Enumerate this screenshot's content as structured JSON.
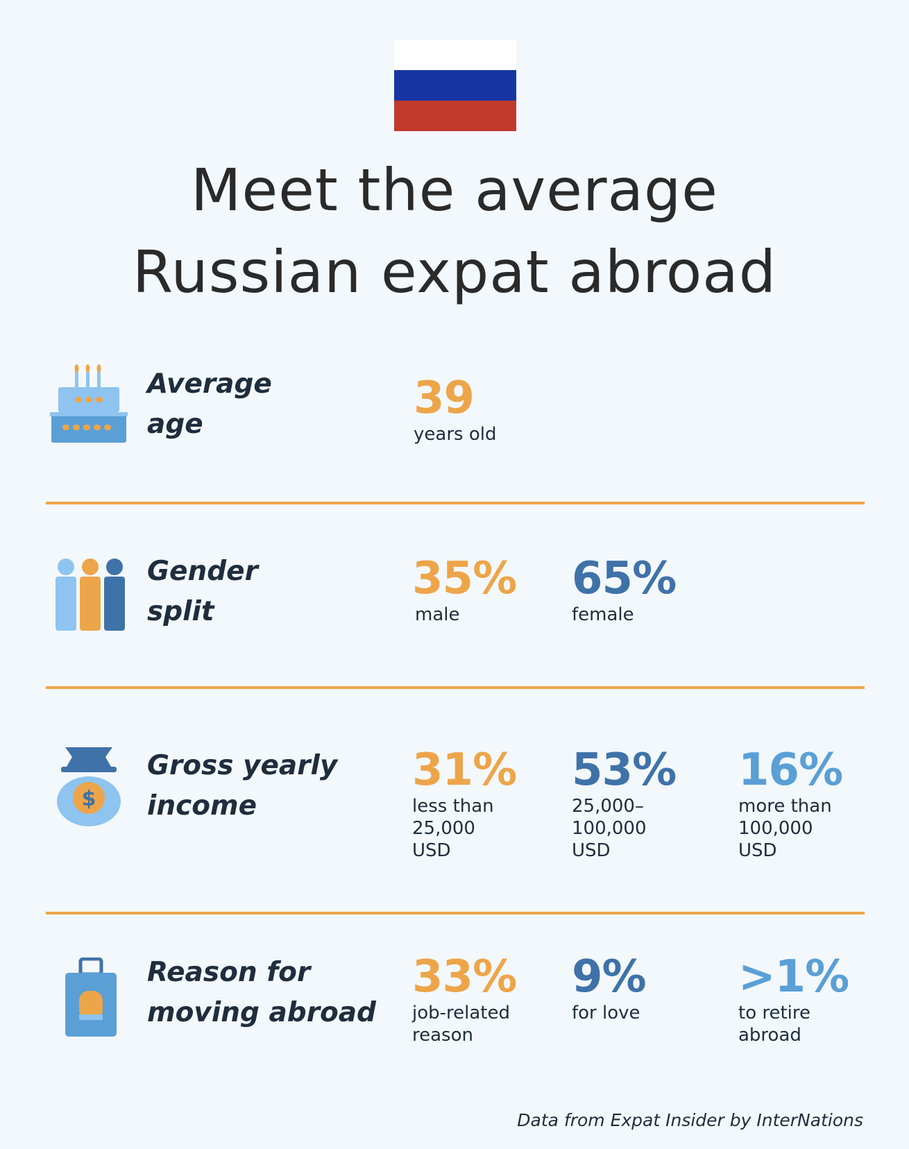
{
  "flag": {
    "colors": [
      "#ffffff",
      "#1836a3",
      "#c23a2c"
    ]
  },
  "title": {
    "line1": "Meet the average",
    "line2": "Russian expat abroad"
  },
  "colors": {
    "orange": "#eda54a",
    "dark_blue": "#3f72a8",
    "light_blue": "#5a9fd6",
    "divider": "#eda54a"
  },
  "sections": {
    "age": {
      "icon": "birthday-cake-icon",
      "label_line1": "Average",
      "label_line2": "age",
      "stats": [
        {
          "value": "39",
          "caption": "years old"
        }
      ]
    },
    "gender": {
      "icon": "people-group-icon",
      "label_line1": "Gender",
      "label_line2": "split",
      "stats": [
        {
          "value": "35%",
          "caption": "male"
        },
        {
          "value": "65%",
          "caption": "female"
        }
      ]
    },
    "income": {
      "icon": "money-bag-icon",
      "label_line1": "Gross yearly",
      "label_line2": "income",
      "stats": [
        {
          "value": "31%",
          "caption_lines": [
            "less than",
            "25,000",
            "USD"
          ]
        },
        {
          "value": "53%",
          "caption_lines": [
            "25,000–",
            "100,000",
            "USD"
          ]
        },
        {
          "value": "16%",
          "caption_lines": [
            "more than",
            "100,000",
            "USD"
          ]
        }
      ]
    },
    "reason": {
      "icon": "suitcase-icon",
      "label_line1": "Reason for",
      "label_line2": "moving abroad",
      "stats": [
        {
          "value": "33%",
          "caption_lines": [
            "job-related",
            "reason"
          ]
        },
        {
          "value": "9%",
          "caption_lines": [
            "for love"
          ]
        },
        {
          "value": ">1%",
          "caption_lines": [
            "to retire",
            "abroad"
          ]
        }
      ]
    }
  },
  "source": "Data from Expat Insider by InterNations"
}
